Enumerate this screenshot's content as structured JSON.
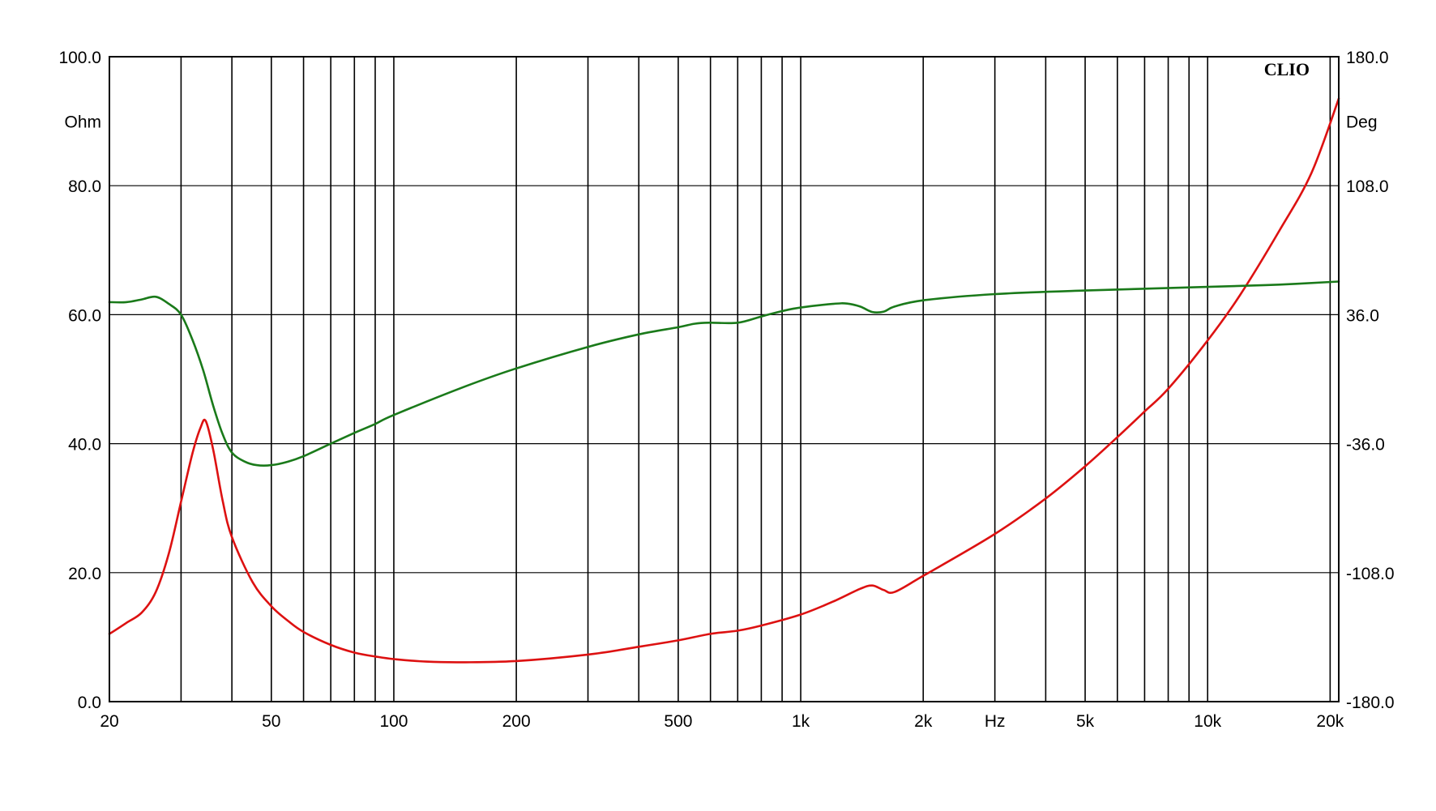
{
  "chart_data": {
    "type": "line",
    "brand": "CLIO",
    "x_scale": "log",
    "xlim": [
      20,
      21000
    ],
    "x_ticks": [
      20,
      50,
      100,
      200,
      500,
      1000,
      2000,
      5000,
      10000,
      20000
    ],
    "x_tick_labels": [
      "20",
      "50",
      "100",
      "200",
      "500",
      "1k",
      "2k",
      "5k",
      "10k",
      "20k"
    ],
    "x_unit_label": "Hz",
    "x_unit_position_value": 3000,
    "x_gridlines": [
      30,
      40,
      50,
      60,
      70,
      80,
      90,
      100,
      200,
      300,
      400,
      500,
      600,
      700,
      800,
      900,
      1000,
      2000,
      3000,
      4000,
      5000,
      6000,
      7000,
      8000,
      9000,
      10000,
      20000
    ],
    "y_left": {
      "unit": "Ohm",
      "ylim": [
        0,
        100
      ],
      "ticks": [
        0,
        20,
        40,
        60,
        80,
        100
      ],
      "tick_labels": [
        "0.0",
        "20.0",
        "40.0",
        "60.0",
        "80.0",
        "100.0"
      ]
    },
    "y_right": {
      "unit": "Deg",
      "ylim": [
        -180,
        180
      ],
      "ticks": [
        -180,
        -108,
        -36,
        36,
        108,
        180
      ],
      "tick_labels": [
        "-180.0",
        "-108.0",
        "-36.0",
        "36.0",
        "108.0",
        "180.0"
      ]
    },
    "grid": true,
    "series": [
      {
        "axis": "left",
        "color": "#dd1111",
        "points": [
          [
            20,
            10.5
          ],
          [
            22,
            12.2
          ],
          [
            24,
            13.8
          ],
          [
            26,
            17
          ],
          [
            28,
            23
          ],
          [
            30,
            31
          ],
          [
            32,
            38.5
          ],
          [
            33.5,
            42.5
          ],
          [
            34.5,
            43.5
          ],
          [
            36,
            39
          ],
          [
            38,
            31
          ],
          [
            40,
            25.5
          ],
          [
            45,
            18.5
          ],
          [
            50,
            14.8
          ],
          [
            55,
            12.5
          ],
          [
            60,
            10.8
          ],
          [
            70,
            8.8
          ],
          [
            80,
            7.6
          ],
          [
            90,
            7
          ],
          [
            100,
            6.6
          ],
          [
            120,
            6.2
          ],
          [
            150,
            6.1
          ],
          [
            200,
            6.3
          ],
          [
            300,
            7.3
          ],
          [
            400,
            8.5
          ],
          [
            500,
            9.5
          ],
          [
            600,
            10.5
          ],
          [
            700,
            11
          ],
          [
            800,
            11.8
          ],
          [
            1000,
            13.5
          ],
          [
            1200,
            15.5
          ],
          [
            1400,
            17.5
          ],
          [
            1500,
            18
          ],
          [
            1600,
            17.3
          ],
          [
            1700,
            17.0
          ],
          [
            2000,
            19.5
          ],
          [
            3000,
            26
          ],
          [
            4000,
            31.5
          ],
          [
            5000,
            36.5
          ],
          [
            6000,
            41
          ],
          [
            7000,
            45
          ],
          [
            8000,
            48.5
          ],
          [
            10000,
            56
          ],
          [
            12000,
            63
          ],
          [
            15000,
            73
          ],
          [
            18000,
            82
          ],
          [
            21000,
            93.5
          ]
        ]
      },
      {
        "axis": "right",
        "color": "#1a7a1a",
        "points": [
          [
            20,
            43
          ],
          [
            22,
            43
          ],
          [
            24,
            44.5
          ],
          [
            26,
            46
          ],
          [
            28,
            42
          ],
          [
            30,
            36
          ],
          [
            32,
            22
          ],
          [
            34,
            5
          ],
          [
            36,
            -15
          ],
          [
            38,
            -31
          ],
          [
            40,
            -41
          ],
          [
            43,
            -46
          ],
          [
            46,
            -48
          ],
          [
            50,
            -48
          ],
          [
            55,
            -46
          ],
          [
            60,
            -43
          ],
          [
            70,
            -36
          ],
          [
            80,
            -30
          ],
          [
            90,
            -25
          ],
          [
            100,
            -20
          ],
          [
            150,
            -4
          ],
          [
            200,
            6
          ],
          [
            300,
            18
          ],
          [
            400,
            25
          ],
          [
            500,
            29
          ],
          [
            550,
            31
          ],
          [
            600,
            31.5
          ],
          [
            700,
            31.5
          ],
          [
            800,
            35
          ],
          [
            900,
            38
          ],
          [
            1000,
            40
          ],
          [
            1200,
            42
          ],
          [
            1300,
            42.2
          ],
          [
            1400,
            40.5
          ],
          [
            1500,
            37.5
          ],
          [
            1600,
            37.7
          ],
          [
            1700,
            40.5
          ],
          [
            2000,
            44
          ],
          [
            3000,
            47.5
          ],
          [
            5000,
            49.5
          ],
          [
            10000,
            51.5
          ],
          [
            15000,
            52.8
          ],
          [
            21000,
            54.5
          ]
        ]
      }
    ]
  }
}
